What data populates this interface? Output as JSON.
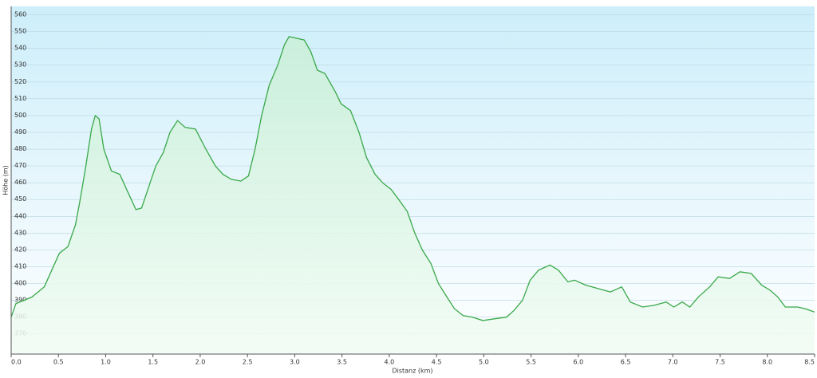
{
  "chart_data": {
    "type": "line",
    "xlabel": "Distanz  (km)",
    "ylabel": "Höhe (m)",
    "x": [
      0,
      0.05,
      0.22,
      0.35,
      0.43,
      0.51,
      0.6,
      0.68,
      0.73,
      0.79,
      0.85,
      0.89,
      0.93,
      0.98,
      1.06,
      1.15,
      1.23,
      1.32,
      1.38,
      1.44,
      1.53,
      1.61,
      1.68,
      1.76,
      1.84,
      1.95,
      2.06,
      2.16,
      2.24,
      2.33,
      2.43,
      2.51,
      2.58,
      2.65,
      2.73,
      2.82,
      2.89,
      2.94,
      3.02,
      3.1,
      3.17,
      3.24,
      3.32,
      3.43,
      3.49,
      3.59,
      3.68,
      3.76,
      3.85,
      3.93,
      4.02,
      4.1,
      4.19,
      4.27,
      4.35,
      4.44,
      4.52,
      4.61,
      4.69,
      4.78,
      4.88,
      4.99,
      5.11,
      5.24,
      5.32,
      5.41,
      5.49,
      5.58,
      5.7,
      5.79,
      5.89,
      5.96,
      6.08,
      6.21,
      6.34,
      6.46,
      6.55,
      6.68,
      6.8,
      6.93,
      7.01,
      7.1,
      7.18,
      7.27,
      7.39,
      7.48,
      7.6,
      7.71,
      7.83,
      7.94,
      8.03,
      8.11,
      8.19,
      8.32,
      8.4,
      8.5
    ],
    "series": [
      {
        "name": "Höhe",
        "color": "#3aa84a",
        "values": [
          380,
          388,
          392,
          398,
          408,
          418,
          422,
          435,
          450,
          470,
          492,
          500,
          498,
          480,
          467,
          465,
          455,
          444,
          445,
          455,
          470,
          478,
          490,
          497,
          493,
          492,
          480,
          470,
          465,
          462,
          461,
          464,
          480,
          500,
          518,
          530,
          542,
          547,
          546,
          545,
          538,
          527,
          525,
          514,
          507,
          503,
          490,
          475,
          465,
          460,
          456,
          450,
          443,
          430,
          420,
          412,
          400,
          392,
          385,
          381,
          380,
          378,
          379,
          380,
          384,
          390,
          402,
          408,
          411,
          408,
          401,
          402,
          399,
          397,
          395,
          398,
          389,
          386,
          387,
          389,
          386,
          389,
          386,
          392,
          398,
          404,
          403,
          407,
          406,
          399,
          396,
          392,
          386,
          386,
          385,
          383
        ]
      }
    ],
    "xlim": [
      0,
      8.5
    ],
    "xticks": [
      {
        "value": 0,
        "label": "0.0"
      },
      0.5,
      {
        "value": 1,
        "label": "1.0"
      },
      1.5,
      {
        "value": 2,
        "label": "2.0"
      },
      2.5,
      {
        "value": 3,
        "label": "3.0"
      },
      3.5,
      {
        "value": 4,
        "label": "4.0"
      },
      4.5,
      {
        "value": 5,
        "label": "5.0"
      },
      5.5,
      {
        "value": 6,
        "label": "6.0"
      },
      6.5,
      {
        "value": 7,
        "label": "7.0"
      },
      7.5,
      {
        "value": 8,
        "label": "8.0"
      },
      8.5
    ],
    "ylim": [
      358,
      565
    ],
    "yticks": [
      370,
      380,
      390,
      400,
      410,
      420,
      430,
      440,
      450,
      460,
      470,
      480,
      490,
      500,
      510,
      520,
      530,
      540,
      550,
      560
    ],
    "grid": true
  }
}
